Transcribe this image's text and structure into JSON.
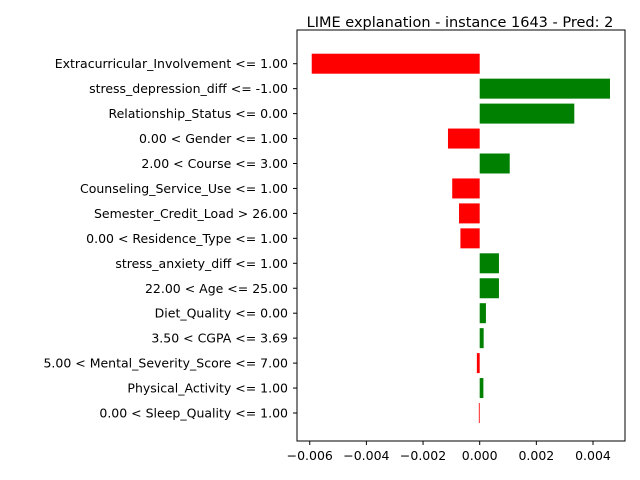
{
  "chart_data": {
    "type": "bar",
    "orientation": "horizontal",
    "title": "LIME explanation - instance 1643 - Pred: 2",
    "xlabel": "",
    "ylabel": "",
    "xlim": [
      -0.00645,
      0.00513
    ],
    "xticks": [
      -0.006,
      -0.004,
      -0.002,
      0.0,
      0.002,
      0.004
    ],
    "xtick_labels": [
      "−0.006",
      "−0.004",
      "−0.002",
      "0.000",
      "0.002",
      "0.004"
    ],
    "grid": false,
    "colors": {
      "positive": "#008000",
      "negative": "#ff0000"
    },
    "categories": [
      "Extracurricular_Involvement <= 1.00",
      "stress_depression_diff <= -1.00",
      "Relationship_Status <= 0.00",
      "0.00 < Gender <= 1.00",
      "2.00 < Course <= 3.00",
      "Counseling_Service_Use <= 1.00",
      "Semester_Credit_Load > 26.00",
      "0.00 < Residence_Type <= 1.00",
      "stress_anxiety_diff <= 1.00",
      "22.00 < Age <= 25.00",
      "Diet_Quality <= 0.00",
      "3.50 < CGPA <= 3.69",
      "5.00 < Mental_Severity_Score <= 7.00",
      "Physical_Activity <= 1.00",
      "0.00 < Sleep_Quality <= 1.00"
    ],
    "values": [
      -0.00593,
      0.0046,
      0.00334,
      -0.00112,
      0.00106,
      -0.00097,
      -0.00073,
      -0.00068,
      0.00068,
      0.00068,
      0.00022,
      0.00014,
      -0.0001,
      0.00013,
      -3e-05
    ]
  }
}
